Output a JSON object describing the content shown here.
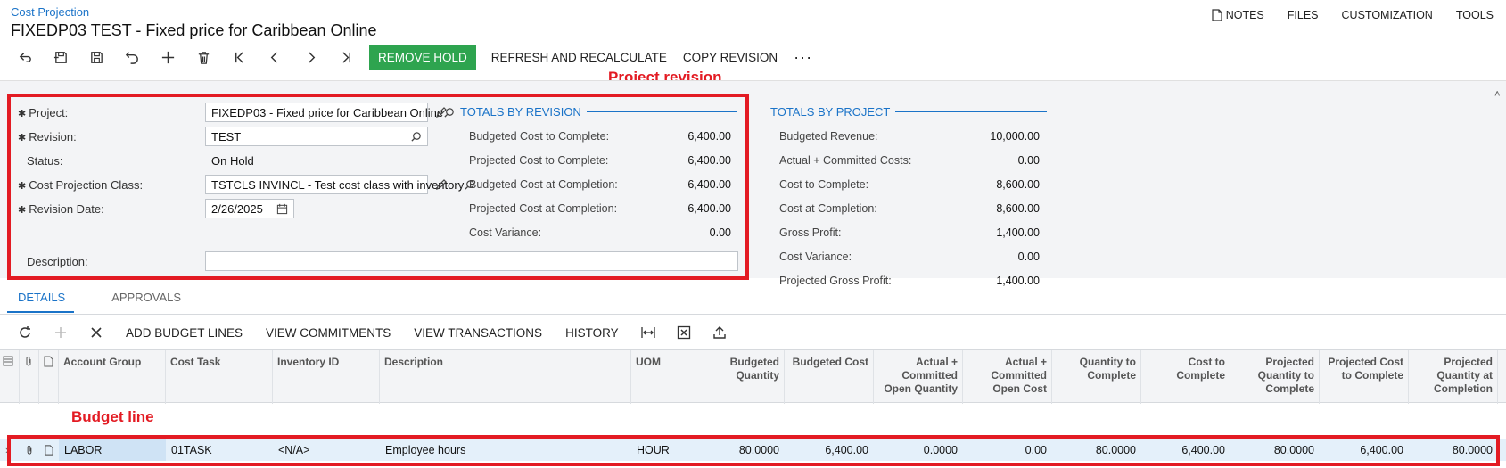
{
  "breadcrumb": "Cost Projection",
  "title": "FIXEDP03 TEST - Fixed price for Caribbean Online",
  "top_links": {
    "notes": "NOTES",
    "files": "FILES",
    "customization": "CUSTOMIZATION",
    "tools": "TOOLS"
  },
  "toolbar": {
    "remove_hold": "REMOVE HOLD",
    "refresh": "REFRESH AND RECALCULATE",
    "copy_revision": "COPY REVISION",
    "more": "···"
  },
  "annotations": {
    "project_revision": "Project revision",
    "budget_line": "Budget line",
    "color": "#e31b23"
  },
  "form": {
    "project_label": "Project:",
    "project_value": "FIXEDP03 - Fixed price for Caribbean Online",
    "revision_label": "Revision:",
    "revision_value": "TEST",
    "status_label": "Status:",
    "status_value": "On Hold",
    "class_label": "Cost Projection Class:",
    "class_value": "TSTCLS INVINCL - Test cost class with inventory",
    "date_label": "Revision Date:",
    "date_value": "2/26/2025",
    "description_label": "Description:",
    "description_value": ""
  },
  "totals_revision": {
    "title": "TOTALS BY REVISION",
    "rows": [
      {
        "label": "Budgeted Cost to Complete:",
        "value": "6,400.00"
      },
      {
        "label": "Projected Cost to Complete:",
        "value": "6,400.00"
      },
      {
        "label": "Budgeted Cost at Completion:",
        "value": "6,400.00"
      },
      {
        "label": "Projected Cost at Completion:",
        "value": "6,400.00"
      },
      {
        "label": "Cost Variance:",
        "value": "0.00"
      }
    ]
  },
  "totals_project": {
    "title": "TOTALS BY PROJECT",
    "rows": [
      {
        "label": "Budgeted Revenue:",
        "value": "10,000.00"
      },
      {
        "label": "Actual + Committed Costs:",
        "value": "0.00"
      },
      {
        "label": "Cost to Complete:",
        "value": "8,600.00"
      },
      {
        "label": "Cost at Completion:",
        "value": "8,600.00"
      },
      {
        "label": "Gross Profit:",
        "value": "1,400.00"
      },
      {
        "label": "Cost Variance:",
        "value": "0.00"
      },
      {
        "label": "Projected Gross Profit:",
        "value": "1,400.00"
      }
    ]
  },
  "tabs": {
    "details": "DETAILS",
    "approvals": "APPROVALS"
  },
  "grid_toolbar": {
    "add_budget_lines": "ADD BUDGET LINES",
    "view_commitments": "VIEW COMMITMENTS",
    "view_transactions": "VIEW TRANSACTIONS",
    "history": "HISTORY"
  },
  "grid": {
    "columns": [
      "Account Group",
      "Cost Task",
      "Inventory ID",
      "Description",
      "UOM",
      "Budgeted Quantity",
      "Budgeted Cost",
      "Actual + Committed Open Quantity",
      "Actual + Committed Open Cost",
      "Quantity to Complete",
      "Cost to Complete",
      "Projected Quantity to Complete",
      "Projected Cost to Complete",
      "Projected Quantity at Completion"
    ],
    "rows": [
      [
        "LABOR",
        "01TASK",
        "<N/A>",
        "Employee hours",
        "HOUR",
        "80.0000",
        "6,400.00",
        "0.0000",
        "0.00",
        "80.0000",
        "6,400.00",
        "80.0000",
        "6,400.00",
        "80.0000"
      ]
    ]
  }
}
